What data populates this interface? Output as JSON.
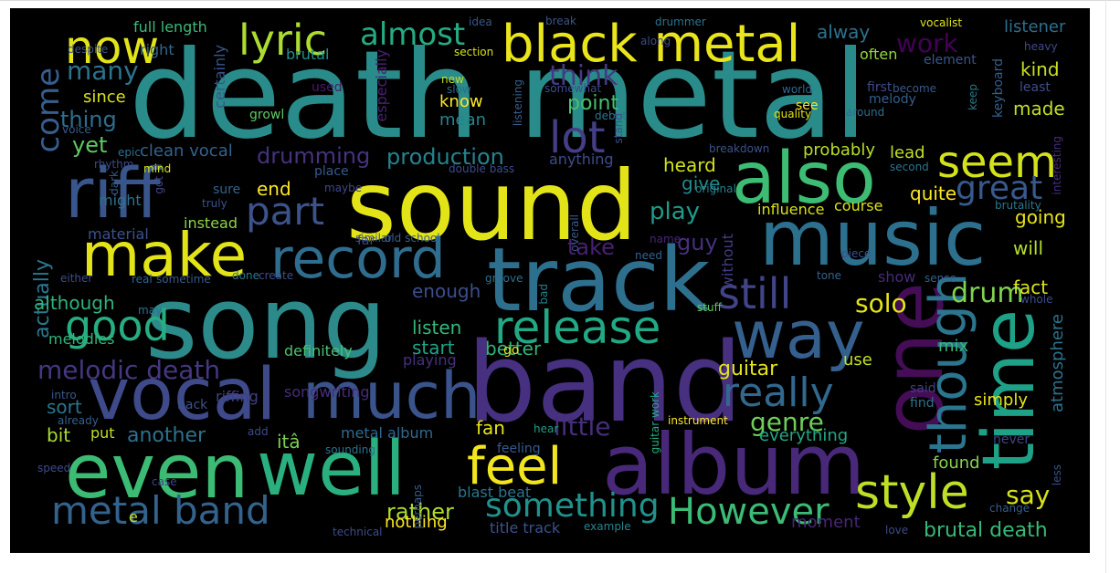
{
  "wordcloud": {
    "background": "#000000",
    "colormap": "viridis",
    "words": [
      {
        "text": "death metal",
        "color": "#2a8c8a"
      },
      {
        "text": "sound",
        "color": "#e3e418"
      },
      {
        "text": "song",
        "color": "#2c8b8a"
      },
      {
        "text": "band",
        "color": "#46307f"
      },
      {
        "text": "track",
        "color": "#2e6f8e"
      },
      {
        "text": "music",
        "color": "#2d708e"
      },
      {
        "text": "album",
        "color": "#482878"
      },
      {
        "text": "one",
        "color": "#440d56"
      },
      {
        "text": "well",
        "color": "#2ab07f"
      },
      {
        "text": "even",
        "color": "#3cbb75"
      },
      {
        "text": "riff",
        "color": "#39568c"
      },
      {
        "text": "vocal",
        "color": "#3e4a89"
      },
      {
        "text": "much",
        "color": "#3a538b"
      },
      {
        "text": "time",
        "color": "#1fa187"
      },
      {
        "text": "also",
        "color": "#3dbc74"
      },
      {
        "text": "black metal",
        "color": "#e9e51a"
      },
      {
        "text": "make",
        "color": "#e3e418"
      },
      {
        "text": "record",
        "color": "#2f6c8e"
      },
      {
        "text": "way",
        "color": "#355f8d"
      },
      {
        "text": "though",
        "color": "#2b758e"
      },
      {
        "text": "feel",
        "color": "#f1e51d"
      },
      {
        "text": "style",
        "color": "#bddf26"
      },
      {
        "text": "release",
        "color": "#22a884"
      },
      {
        "text": "lyric",
        "color": "#addc30"
      },
      {
        "text": "now",
        "color": "#e2e418"
      },
      {
        "text": "metal band",
        "color": "#33638d"
      },
      {
        "text": "However",
        "color": "#3bbb75"
      },
      {
        "text": "something",
        "color": "#21918c"
      },
      {
        "text": "seem",
        "color": "#d2e21b"
      },
      {
        "text": "lot",
        "color": "#433e85"
      },
      {
        "text": "good",
        "color": "#27ad81"
      },
      {
        "text": "still",
        "color": "#414487"
      },
      {
        "text": "part",
        "color": "#3b528b"
      },
      {
        "text": "really",
        "color": "#31688e"
      },
      {
        "text": "great",
        "color": "#38598c"
      },
      {
        "text": "almost",
        "color": "#25ab82"
      },
      {
        "text": "come",
        "color": "#365d8d"
      },
      {
        "text": "many",
        "color": "#2c728e"
      },
      {
        "text": "melodic death",
        "color": "#453781"
      },
      {
        "text": "drum",
        "color": "#7fd34e"
      },
      {
        "text": "solo",
        "color": "#e4e419"
      },
      {
        "text": "genre",
        "color": "#6ece58"
      },
      {
        "text": "atmosphere",
        "color": "#2c728e"
      },
      {
        "text": "work",
        "color": "#440154"
      },
      {
        "text": "think",
        "color": "#443a83"
      },
      {
        "text": "production",
        "color": "#25838e"
      },
      {
        "text": "drumming",
        "color": "#46327e"
      },
      {
        "text": "thing",
        "color": "#2e6e8e"
      },
      {
        "text": "yet",
        "color": "#5ec962"
      },
      {
        "text": "point",
        "color": "#46c06f"
      },
      {
        "text": "play",
        "color": "#1e9b8a"
      },
      {
        "text": "rather",
        "color": "#addc30"
      },
      {
        "text": "another",
        "color": "#2c728e"
      },
      {
        "text": "little",
        "color": "#472d7b"
      },
      {
        "text": "take",
        "color": "#482173"
      },
      {
        "text": "guy",
        "color": "#46307e"
      },
      {
        "text": "say",
        "color": "#d8e219"
      },
      {
        "text": "actually",
        "color": "#2a788e"
      },
      {
        "text": "brutal death",
        "color": "#38b977"
      },
      {
        "text": "guitar",
        "color": "#e5e419"
      },
      {
        "text": "heard",
        "color": "#d2e21b"
      },
      {
        "text": "give",
        "color": "#238a8d"
      },
      {
        "text": "end",
        "color": "#fde725"
      },
      {
        "text": "listen",
        "color": "#35b779"
      },
      {
        "text": "start",
        "color": "#20a386"
      },
      {
        "text": "enough",
        "color": "#3d4e8a"
      },
      {
        "text": "better",
        "color": "#31b57b"
      },
      {
        "text": "fan",
        "color": "#e5e419"
      },
      {
        "text": "itâ",
        "color": "#7ad151"
      },
      {
        "text": "bit",
        "color": "#a8db34"
      },
      {
        "text": "sort",
        "color": "#2a768e"
      },
      {
        "text": "although",
        "color": "#2fb47c"
      },
      {
        "text": "fact",
        "color": "#dde318"
      },
      {
        "text": "will",
        "color": "#b5de2b"
      },
      {
        "text": "going",
        "color": "#e7e419"
      },
      {
        "text": "quite",
        "color": "#fde725"
      },
      {
        "text": "kind",
        "color": "#c8e020"
      },
      {
        "text": "made",
        "color": "#c0df25"
      },
      {
        "text": "alway",
        "color": "#2c728e"
      },
      {
        "text": "often",
        "color": "#95d840"
      },
      {
        "text": "listener",
        "color": "#2e6e8e"
      },
      {
        "text": "simply",
        "color": "#e5e419"
      },
      {
        "text": "mix",
        "color": "#37b878"
      },
      {
        "text": "use",
        "color": "#c2df23"
      },
      {
        "text": "everything",
        "color": "#22a785"
      },
      {
        "text": "found",
        "color": "#84d44b"
      },
      {
        "text": "moment",
        "color": "#482576"
      },
      {
        "text": "nothing",
        "color": "#fde725"
      },
      {
        "text": "probably",
        "color": "#b8de29"
      },
      {
        "text": "lead",
        "color": "#c2df23"
      },
      {
        "text": "clean vocal",
        "color": "#33628d"
      },
      {
        "text": "since",
        "color": "#d5e21a"
      },
      {
        "text": "full length",
        "color": "#3aba76"
      },
      {
        "text": "right",
        "color": "#31688e"
      },
      {
        "text": "brutal",
        "color": "#21908d"
      },
      {
        "text": "mean",
        "color": "#25858e"
      },
      {
        "text": "know",
        "color": "#fde725"
      },
      {
        "text": "especially",
        "color": "#482071"
      },
      {
        "text": "certainly",
        "color": "#39558c"
      },
      {
        "text": "might",
        "color": "#2c738e"
      },
      {
        "text": "material",
        "color": "#3b528b"
      },
      {
        "text": "instead",
        "color": "#8bd646"
      },
      {
        "text": "definitely",
        "color": "#4ac16d"
      },
      {
        "text": "playing",
        "color": "#46307e"
      },
      {
        "text": "riffing",
        "color": "#433e85"
      },
      {
        "text": "songwriting",
        "color": "#472c7a"
      },
      {
        "text": "metal album",
        "color": "#30698e"
      },
      {
        "text": "blast beat",
        "color": "#2a768e"
      },
      {
        "text": "title track",
        "color": "#3b528b"
      },
      {
        "text": "influence",
        "color": "#d8e219"
      },
      {
        "text": "course",
        "color": "#dde318"
      },
      {
        "text": "show",
        "color": "#472a7a"
      },
      {
        "text": "anything",
        "color": "#3e4c8a"
      },
      {
        "text": "growl",
        "color": "#5ec962"
      },
      {
        "text": "used",
        "color": "#481a6c"
      },
      {
        "text": "melodies",
        "color": "#31b57b"
      },
      {
        "text": "interesting",
        "color": "#472d7b"
      },
      {
        "text": "brutality",
        "color": "#2a788e"
      },
      {
        "text": "keyboard",
        "color": "#34608d"
      },
      {
        "text": "melody",
        "color": "#355e8d"
      },
      {
        "text": "around",
        "color": "#2e6e8e"
      },
      {
        "text": "first",
        "color": "#3e4a89"
      },
      {
        "text": "become",
        "color": "#375a8c"
      },
      {
        "text": "see",
        "color": "#fde725"
      },
      {
        "text": "quality",
        "color": "#e2e418"
      },
      {
        "text": "world",
        "color": "#31688e"
      },
      {
        "text": "element",
        "color": "#39568c"
      },
      {
        "text": "least",
        "color": "#3d4e8a"
      },
      {
        "text": "keep",
        "color": "#2a788e"
      },
      {
        "text": "heavy",
        "color": "#3e4989"
      },
      {
        "text": "breakdown",
        "color": "#3b528b"
      },
      {
        "text": "second",
        "color": "#2c738e"
      },
      {
        "text": "without",
        "color": "#433d84"
      },
      {
        "text": "overall",
        "color": "#38598c"
      },
      {
        "text": "groove",
        "color": "#2e6e8e"
      },
      {
        "text": "need",
        "color": "#33638d"
      },
      {
        "text": "piece",
        "color": "#3b528b"
      },
      {
        "text": "tone",
        "color": "#33638d"
      },
      {
        "text": "sense",
        "color": "#355f8d"
      },
      {
        "text": "whole",
        "color": "#3e4c8a"
      },
      {
        "text": "said",
        "color": "#433e85"
      },
      {
        "text": "find",
        "color": "#2c738e"
      },
      {
        "text": "never",
        "color": "#414487"
      },
      {
        "text": "less",
        "color": "#3b528b"
      },
      {
        "text": "change",
        "color": "#365d8d"
      },
      {
        "text": "love",
        "color": "#3e4989"
      },
      {
        "text": "instrument",
        "color": "#fde725"
      },
      {
        "text": "guitar work",
        "color": "#25ab82"
      },
      {
        "text": "stuff",
        "color": "#5ec962"
      },
      {
        "text": "bad",
        "color": "#26828e"
      },
      {
        "text": "example",
        "color": "#25858e"
      },
      {
        "text": "technical",
        "color": "#3e4a89"
      },
      {
        "text": "perhaps",
        "color": "#365c8d"
      },
      {
        "text": "case",
        "color": "#414487"
      },
      {
        "text": "feeling",
        "color": "#38598c"
      },
      {
        "text": "hear",
        "color": "#1f9e89"
      },
      {
        "text": "go",
        "color": "#e5e419"
      },
      {
        "text": "similar",
        "color": "#3b528b"
      },
      {
        "text": "old school",
        "color": "#355f8d"
      },
      {
        "text": "done",
        "color": "#2a788e"
      },
      {
        "text": "create",
        "color": "#3d4e8a"
      },
      {
        "text": "sometime",
        "color": "#38598c"
      },
      {
        "text": "real",
        "color": "#33628d"
      },
      {
        "text": "either",
        "color": "#3e4c8a"
      },
      {
        "text": "far",
        "color": "#3e4a89"
      },
      {
        "text": "may",
        "color": "#2c738e"
      },
      {
        "text": "back",
        "color": "#3b528b"
      },
      {
        "text": "put",
        "color": "#c2df23"
      },
      {
        "text": "already",
        "color": "#355f8d"
      },
      {
        "text": "add",
        "color": "#3e4c8a"
      },
      {
        "text": "intro",
        "color": "#38598c"
      },
      {
        "text": "sounding",
        "color": "#2c738e"
      },
      {
        "text": "speed",
        "color": "#3e4a89"
      },
      {
        "text": "e",
        "color": "#c2df23"
      },
      {
        "text": "truly",
        "color": "#3b528b"
      },
      {
        "text": "sure",
        "color": "#33638d"
      },
      {
        "text": "original",
        "color": "#26828e"
      },
      {
        "text": "name",
        "color": "#482576"
      },
      {
        "text": "maybe",
        "color": "#3e4989"
      },
      {
        "text": "place",
        "color": "#38598c"
      },
      {
        "text": "double bass",
        "color": "#3e4c8a"
      },
      {
        "text": "epic",
        "color": "#2e6e8e"
      },
      {
        "text": "mind",
        "color": "#d2e21b"
      },
      {
        "text": "got",
        "color": "#3e4a89"
      },
      {
        "text": "dark",
        "color": "#365d8d"
      },
      {
        "text": "rhythm",
        "color": "#3e4989"
      },
      {
        "text": "voice",
        "color": "#38598c"
      },
      {
        "text": "despite",
        "color": "#3b528b"
      },
      {
        "text": "idea",
        "color": "#38598c"
      },
      {
        "text": "break",
        "color": "#3b528b"
      },
      {
        "text": "drummer",
        "color": "#2c738e"
      },
      {
        "text": "vocalist",
        "color": "#e2e418"
      },
      {
        "text": "section",
        "color": "#d8e219"
      },
      {
        "text": "along",
        "color": "#3e4a89"
      },
      {
        "text": "new",
        "color": "#c2df23"
      },
      {
        "text": "slow",
        "color": "#31688e"
      },
      {
        "text": "listening",
        "color": "#355f8d"
      },
      {
        "text": "somewhat",
        "color": "#3e4c8a"
      },
      {
        "text": "debut",
        "color": "#2a788e"
      },
      {
        "text": "stand",
        "color": "#3b528b"
      }
    ]
  }
}
